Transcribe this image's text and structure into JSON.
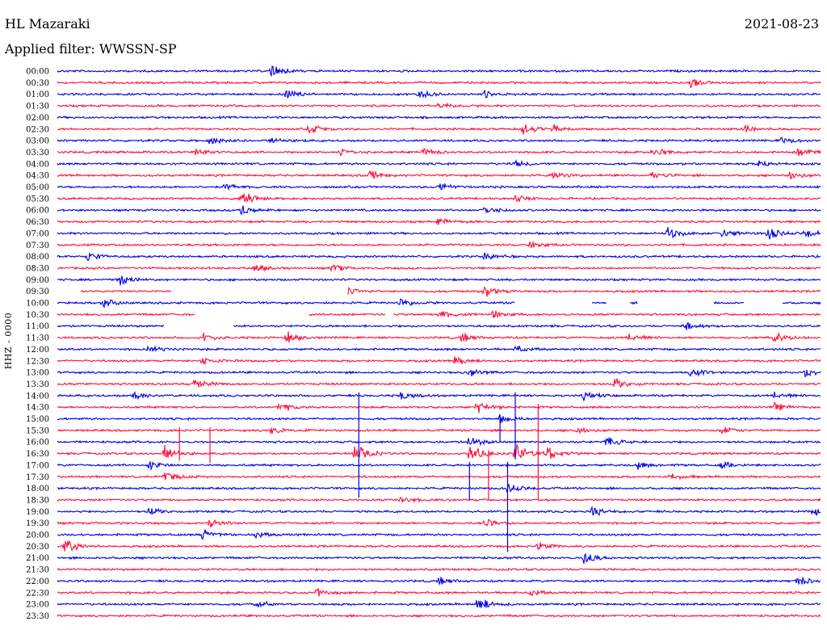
{
  "header": {
    "station": "HL Mazaraki",
    "date": "2021-08-23",
    "filter": "Applied filter: WWSSN-SP"
  },
  "channel": "HHZ - 0000",
  "colors": {
    "blue": "#0000e6",
    "red": "#ff0f3c"
  },
  "chart_data": {
    "type": "line",
    "title": "",
    "ylabel": "HHZ - 0000",
    "row_labels": [
      "00:00",
      "00:30",
      "01:00",
      "01:30",
      "02:00",
      "02:30",
      "03:00",
      "03:30",
      "04:00",
      "04:30",
      "05:00",
      "05:30",
      "06:00",
      "06:30",
      "07:00",
      "07:30",
      "08:00",
      "08:30",
      "09:00",
      "09:30",
      "10:00",
      "10:30",
      "11:00",
      "11:30",
      "12:00",
      "12:30",
      "13:00",
      "13:30",
      "14:00",
      "14:30",
      "15:00",
      "15:30",
      "16:00",
      "16:30",
      "17:00",
      "17:30",
      "18:00",
      "18:30",
      "19:00",
      "19:30",
      "20:00",
      "20:30",
      "21:00",
      "21:30",
      "22:00",
      "22:30",
      "23:00",
      "23:30"
    ],
    "row_colors": [
      "blue",
      "red"
    ],
    "events": [
      {
        "row": 0,
        "t": 0.28,
        "amp": 0.55
      },
      {
        "row": 1,
        "t": 0.83,
        "amp": 0.45
      },
      {
        "row": 2,
        "t": 0.3,
        "amp": 0.45
      },
      {
        "row": 2,
        "t": 0.47,
        "amp": 0.5
      },
      {
        "row": 2,
        "t": 0.56,
        "amp": 0.35
      },
      {
        "row": 3,
        "t": 0.5,
        "amp": 0.35
      },
      {
        "row": 5,
        "t": 0.33,
        "amp": 0.45
      },
      {
        "row": 5,
        "t": 0.61,
        "amp": 0.6
      },
      {
        "row": 5,
        "t": 0.65,
        "amp": 0.45
      },
      {
        "row": 5,
        "t": 0.9,
        "amp": 0.35
      },
      {
        "row": 6,
        "t": 0.2,
        "amp": 0.4
      },
      {
        "row": 6,
        "t": 0.28,
        "amp": 0.3
      },
      {
        "row": 6,
        "t": 0.95,
        "amp": 0.4
      },
      {
        "row": 7,
        "t": 0.18,
        "amp": 0.45
      },
      {
        "row": 7,
        "t": 0.37,
        "amp": 0.5
      },
      {
        "row": 7,
        "t": 0.48,
        "amp": 0.4
      },
      {
        "row": 7,
        "t": 0.78,
        "amp": 0.55
      },
      {
        "row": 7,
        "t": 0.97,
        "amp": 0.4
      },
      {
        "row": 8,
        "t": 0.6,
        "amp": 0.3
      },
      {
        "row": 8,
        "t": 0.92,
        "amp": 0.35
      },
      {
        "row": 9,
        "t": 0.41,
        "amp": 0.4
      },
      {
        "row": 9,
        "t": 0.65,
        "amp": 0.35
      },
      {
        "row": 9,
        "t": 0.78,
        "amp": 0.35
      },
      {
        "row": 9,
        "t": 0.96,
        "amp": 0.4
      },
      {
        "row": 10,
        "t": 0.22,
        "amp": 0.35
      },
      {
        "row": 10,
        "t": 0.5,
        "amp": 0.4
      },
      {
        "row": 11,
        "t": 0.24,
        "amp": 0.75
      },
      {
        "row": 11,
        "t": 0.6,
        "amp": 0.35
      },
      {
        "row": 12,
        "t": 0.24,
        "amp": 0.5
      },
      {
        "row": 12,
        "t": 0.56,
        "amp": 0.45
      },
      {
        "row": 13,
        "t": 0.5,
        "amp": 0.35
      },
      {
        "row": 14,
        "t": 0.8,
        "amp": 0.6
      },
      {
        "row": 14,
        "t": 0.87,
        "amp": 0.5
      },
      {
        "row": 14,
        "t": 0.93,
        "amp": 0.6
      },
      {
        "row": 14,
        "t": 0.98,
        "amp": 0.45
      },
      {
        "row": 15,
        "t": 0.62,
        "amp": 0.35
      },
      {
        "row": 16,
        "t": 0.04,
        "amp": 0.4
      },
      {
        "row": 16,
        "t": 0.56,
        "amp": 0.35
      },
      {
        "row": 17,
        "t": 0.26,
        "amp": 0.4
      },
      {
        "row": 17,
        "t": 0.36,
        "amp": 0.35
      },
      {
        "row": 18,
        "t": 0.08,
        "amp": 0.55
      },
      {
        "row": 19,
        "t": 0.37,
        "amp": 0.6
      },
      {
        "row": 19,
        "t": 0.56,
        "amp": 0.55
      },
      {
        "row": 20,
        "t": 0.06,
        "amp": 0.55
      },
      {
        "row": 20,
        "t": 0.45,
        "amp": 0.4
      },
      {
        "row": 21,
        "t": 0.5,
        "amp": 0.45
      },
      {
        "row": 21,
        "t": 0.57,
        "amp": 0.4
      },
      {
        "row": 22,
        "t": 0.82,
        "amp": 0.45
      },
      {
        "row": 23,
        "t": 0.19,
        "amp": 0.45
      },
      {
        "row": 23,
        "t": 0.3,
        "amp": 0.55
      },
      {
        "row": 23,
        "t": 0.53,
        "amp": 0.45
      },
      {
        "row": 23,
        "t": 0.75,
        "amp": 0.45
      },
      {
        "row": 23,
        "t": 0.94,
        "amp": 0.5
      },
      {
        "row": 24,
        "t": 0.12,
        "amp": 0.35
      },
      {
        "row": 24,
        "t": 0.6,
        "amp": 0.35
      },
      {
        "row": 25,
        "t": 0.19,
        "amp": 0.45
      },
      {
        "row": 25,
        "t": 0.52,
        "amp": 0.4
      },
      {
        "row": 26,
        "t": 0.54,
        "amp": 0.4
      },
      {
        "row": 26,
        "t": 0.83,
        "amp": 0.45
      },
      {
        "row": 26,
        "t": 0.98,
        "amp": 0.4
      },
      {
        "row": 27,
        "t": 0.18,
        "amp": 0.45
      },
      {
        "row": 27,
        "t": 0.73,
        "amp": 0.55
      },
      {
        "row": 28,
        "t": 0.1,
        "amp": 0.35
      },
      {
        "row": 28,
        "t": 0.45,
        "amp": 0.45
      },
      {
        "row": 28,
        "t": 0.69,
        "amp": 0.35
      },
      {
        "row": 28,
        "t": 0.94,
        "amp": 0.35
      },
      {
        "row": 29,
        "t": 0.29,
        "amp": 0.5
      },
      {
        "row": 29,
        "t": 0.55,
        "amp": 0.55
      },
      {
        "row": 29,
        "t": 0.94,
        "amp": 0.35
      },
      {
        "row": 30,
        "t": 0.58,
        "amp": 0.4
      },
      {
        "row": 31,
        "t": 0.28,
        "amp": 0.35
      },
      {
        "row": 31,
        "t": 0.68,
        "amp": 0.4
      },
      {
        "row": 31,
        "t": 0.87,
        "amp": 0.35
      },
      {
        "row": 32,
        "t": 0.54,
        "amp": 0.55
      },
      {
        "row": 32,
        "t": 0.72,
        "amp": 0.45
      },
      {
        "row": 33,
        "t": 0.14,
        "amp": 0.9
      },
      {
        "row": 33,
        "t": 0.39,
        "amp": 0.9
      },
      {
        "row": 33,
        "t": 0.54,
        "amp": 0.9
      },
      {
        "row": 33,
        "t": 0.6,
        "amp": 1.0
      },
      {
        "row": 33,
        "t": 0.64,
        "amp": 0.7
      },
      {
        "row": 34,
        "t": 0.12,
        "amp": 0.45
      },
      {
        "row": 34,
        "t": 0.76,
        "amp": 0.35
      },
      {
        "row": 34,
        "t": 0.87,
        "amp": 0.35
      },
      {
        "row": 35,
        "t": 0.14,
        "amp": 0.5
      },
      {
        "row": 35,
        "t": 0.8,
        "amp": 0.35
      },
      {
        "row": 36,
        "t": 0.59,
        "amp": 0.45
      },
      {
        "row": 37,
        "t": 0.45,
        "amp": 0.4
      },
      {
        "row": 38,
        "t": 0.12,
        "amp": 0.4
      },
      {
        "row": 38,
        "t": 0.7,
        "amp": 0.45
      },
      {
        "row": 38,
        "t": 0.99,
        "amp": 0.55
      },
      {
        "row": 39,
        "t": 0.2,
        "amp": 0.45
      },
      {
        "row": 39,
        "t": 0.56,
        "amp": 0.35
      },
      {
        "row": 40,
        "t": 0.19,
        "amp": 0.5
      },
      {
        "row": 40,
        "t": 0.26,
        "amp": 0.3
      },
      {
        "row": 41,
        "t": 0.01,
        "amp": 0.7
      },
      {
        "row": 41,
        "t": 0.63,
        "amp": 0.4
      },
      {
        "row": 42,
        "t": 0.69,
        "amp": 0.6
      },
      {
        "row": 44,
        "t": 0.5,
        "amp": 0.35
      },
      {
        "row": 44,
        "t": 0.97,
        "amp": 0.5
      },
      {
        "row": 45,
        "t": 0.34,
        "amp": 0.4
      },
      {
        "row": 45,
        "t": 0.62,
        "amp": 0.3
      },
      {
        "row": 46,
        "t": 0.26,
        "amp": 0.35
      },
      {
        "row": 46,
        "t": 0.55,
        "amp": 0.7
      }
    ],
    "spikes": [
      {
        "row": 28,
        "t": 0.395,
        "down_rows": 8.8
      },
      {
        "row": 28,
        "t": 0.6,
        "down_rows": 5.5
      },
      {
        "row": 29,
        "t": 0.63,
        "down_rows": 8.0
      },
      {
        "row": 31,
        "t": 0.16,
        "down_rows": 2.6
      },
      {
        "row": 31,
        "t": 0.2,
        "down_rows": 2.8
      },
      {
        "row": 33,
        "t": 0.565,
        "down_rows": 4.0
      },
      {
        "row": 34,
        "t": 0.54,
        "down_rows": 3.0
      },
      {
        "row": 34,
        "t": 0.59,
        "down_rows": 7.5
      },
      {
        "row": 30,
        "t": 0.58,
        "down_rows": 2.0
      }
    ],
    "gaps": [
      {
        "row": 19,
        "segments": [
          [
            0.0,
            0.03
          ],
          [
            0.15,
            0.37
          ],
          [
            0.37,
            0.38
          ]
        ]
      },
      {
        "row": 20,
        "segments": [
          [
            0.6,
            0.7
          ],
          [
            0.72,
            0.75
          ],
          [
            0.76,
            0.86
          ],
          [
            0.9,
            0.95
          ]
        ]
      },
      {
        "row": 21,
        "segments": [
          [
            0.18,
            0.33
          ],
          [
            0.43,
            0.44
          ]
        ]
      },
      {
        "row": 22,
        "segments": [
          [
            0.14,
            0.23
          ]
        ]
      }
    ]
  }
}
